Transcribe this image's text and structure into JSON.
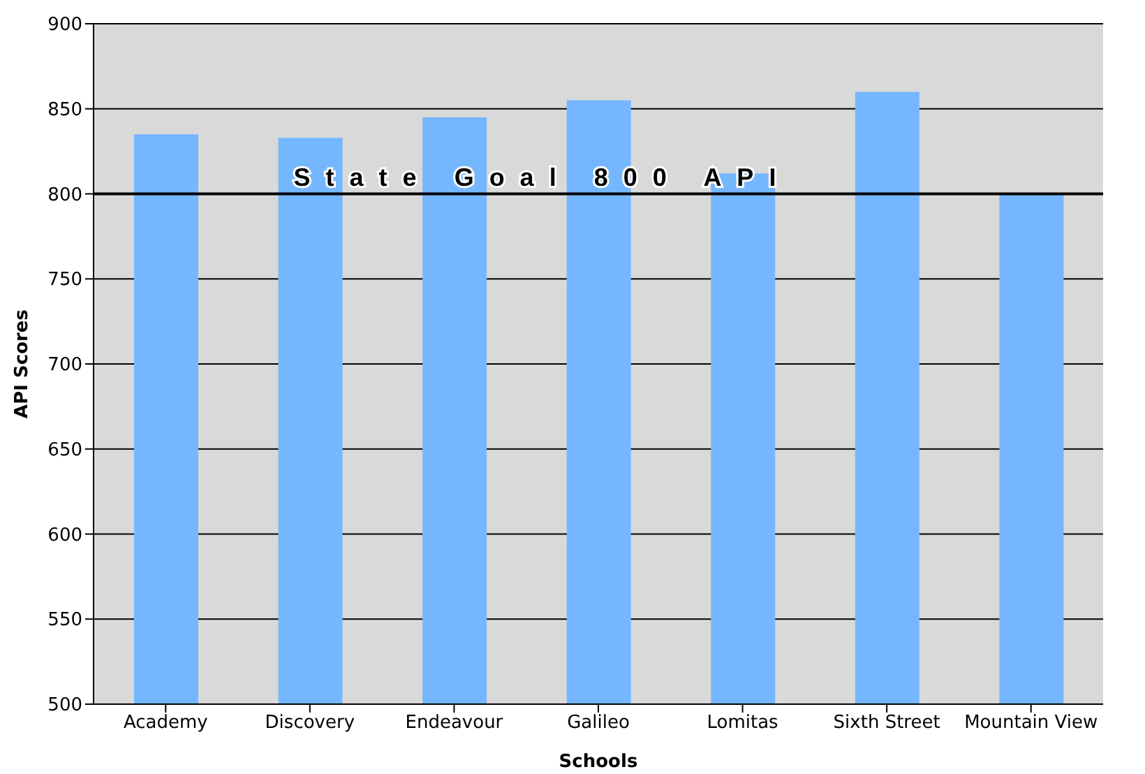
{
  "chart_data": {
    "type": "bar",
    "xlabel": "Schools",
    "ylabel": "API Scores",
    "categories": [
      "Academy",
      "Discovery",
      "Endeavour",
      "Galileo",
      "Lomitas",
      "Sixth Street",
      "Mountain View"
    ],
    "values": [
      835,
      833,
      845,
      855,
      812,
      860,
      800
    ],
    "color": "#75b7ff",
    "ylim": [
      500,
      900
    ],
    "yticks": [
      500,
      550,
      600,
      650,
      700,
      750,
      800,
      850,
      900
    ],
    "grid": "y",
    "ref_lines": [
      {
        "axis": "y",
        "value": 800,
        "label": "State Goal 800 API",
        "color": "#000000"
      }
    ]
  }
}
